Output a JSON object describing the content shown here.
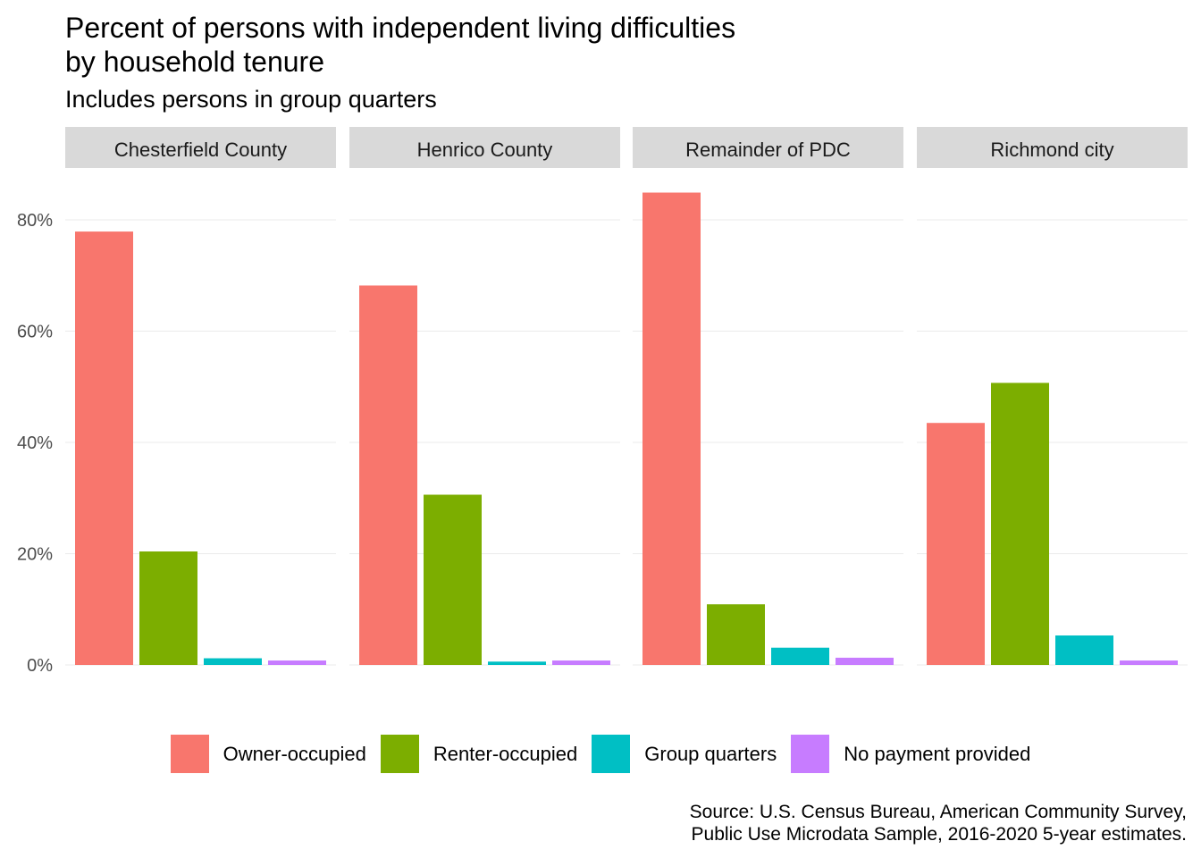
{
  "chart_title_line1": "Percent of persons with independent living difficulties",
  "chart_title_line2": "by household tenure",
  "chart_subtitle": "Includes persons in group quarters",
  "caption_line1": "Source: U.S. Census Bureau, American Community Survey,",
  "caption_line2": "Public Use Microdata Sample, 2016-2020 5-year estimates.",
  "colors": {
    "Owner-occupied": "#F8766D",
    "Renter-occupied": "#7CAE00",
    "Group quarters": "#00BFC4",
    "No payment provided": "#C77CFF",
    "strip": "#D9D9D9",
    "grid": "#EBEBEB"
  },
  "chart_data": {
    "type": "bar",
    "title": "Percent of persons with independent living difficulties by household tenure",
    "subtitle": "Includes persons in group quarters",
    "ylim": [
      0,
      0.85
    ],
    "yticks": [
      0,
      0.2,
      0.4,
      0.6,
      0.8
    ],
    "ytick_labels": [
      "0%",
      "20%",
      "40%",
      "60%",
      "80%"
    ],
    "legend_position": "bottom",
    "grid": true,
    "categories": [
      "Owner-occupied",
      "Renter-occupied",
      "Group quarters",
      "No payment provided"
    ],
    "facets": [
      {
        "name": "Chesterfield County",
        "values": [
          0.779,
          0.204,
          0.012,
          0.008
        ]
      },
      {
        "name": "Henrico County",
        "values": [
          0.682,
          0.306,
          0.006,
          0.008
        ]
      },
      {
        "name": "Remainder of PDC",
        "values": [
          0.849,
          0.109,
          0.031,
          0.013
        ]
      },
      {
        "name": "Richmond city",
        "values": [
          0.435,
          0.507,
          0.053,
          0.008
        ]
      }
    ]
  }
}
